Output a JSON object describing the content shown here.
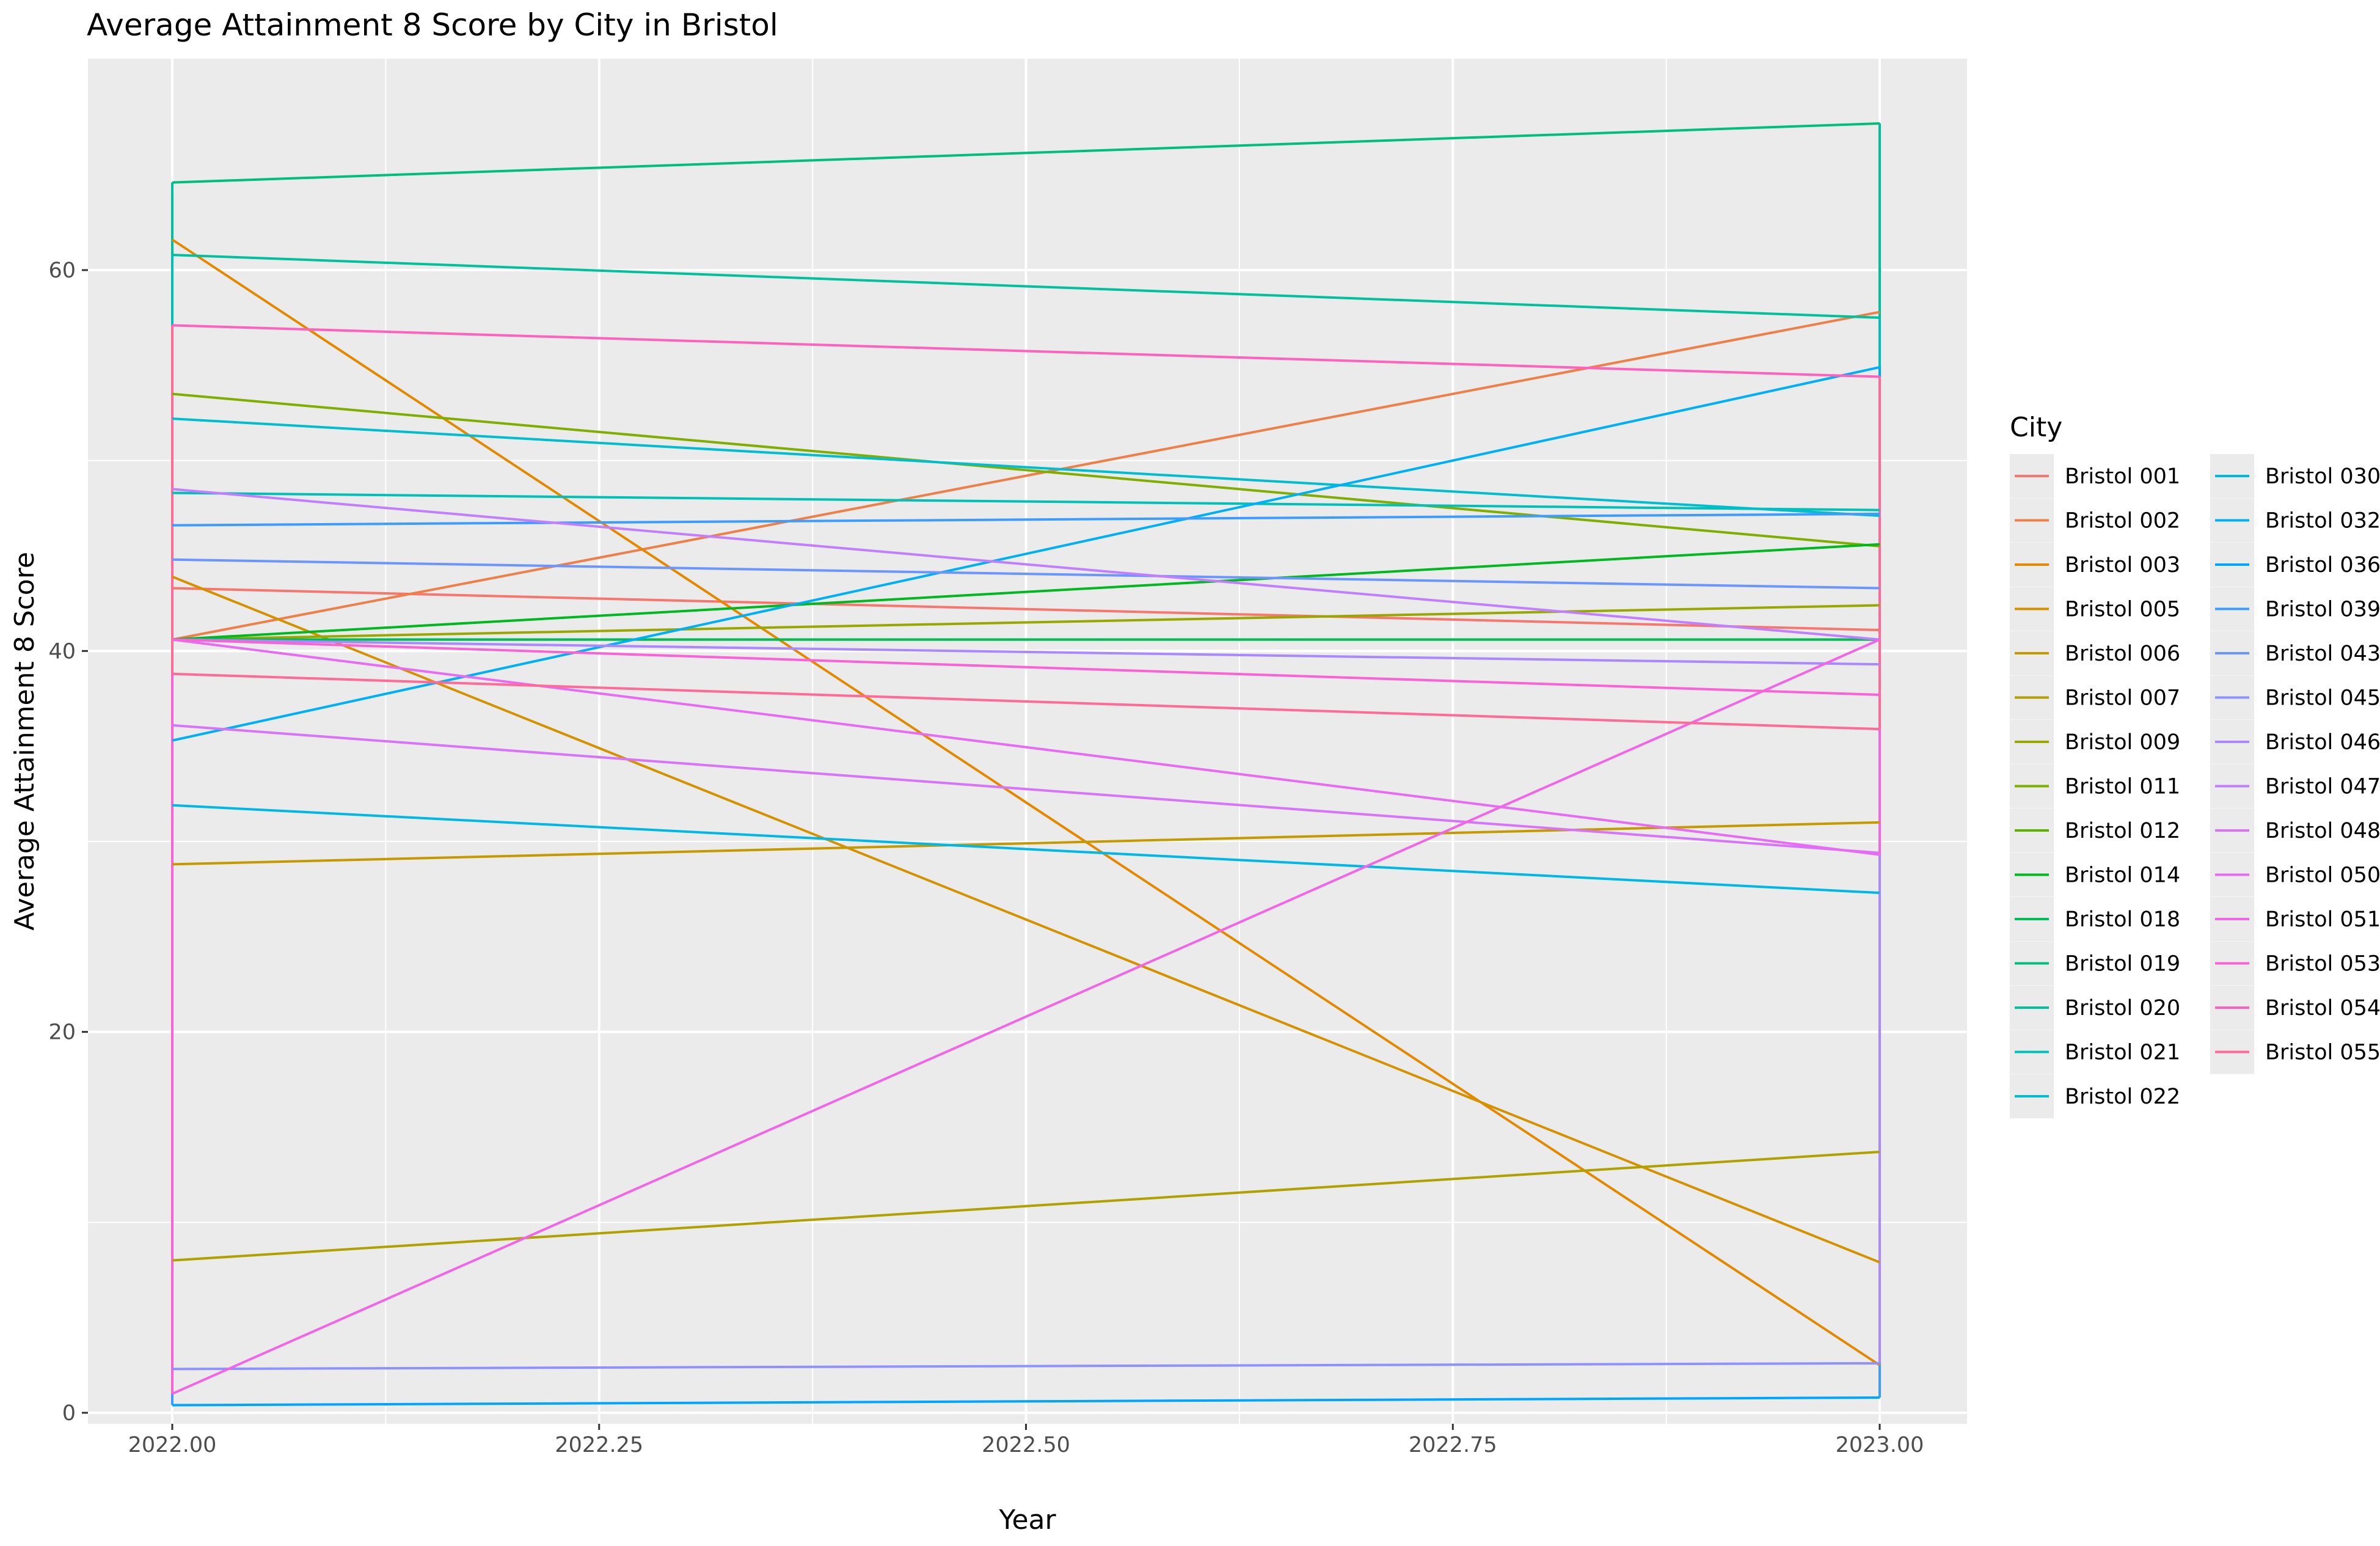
{
  "chart_data": {
    "type": "line",
    "title": "Average Attainment 8 Score by City in Bristol",
    "xlabel": "Year",
    "ylabel": "Average Attainment 8 Score",
    "xlim": [
      1999.95,
      2023.05
    ],
    "ylim": [
      -2.5,
      70.3
    ],
    "xticks": [
      2022.0,
      2022.25,
      2022.5,
      2022.75,
      2023.0
    ],
    "xtick_labels": [
      "2022.00",
      "2022.25",
      "2022.50",
      "2022.75",
      "2023.00"
    ],
    "yticks": [
      0,
      20,
      40,
      60
    ],
    "ytick_labels": [
      "0",
      "20",
      "40",
      "60"
    ],
    "grid": true,
    "legend_title": "City",
    "legend_position": "right",
    "series": [
      {
        "name": "Bristol 001",
        "color": "#F8766D",
        "values": [
          43.3,
          41.1
        ]
      },
      {
        "name": "Bristol 002",
        "color": "#EF7F49",
        "values": [
          40.6,
          57.8
        ]
      },
      {
        "name": "Bristol 003",
        "color": "#E38900",
        "values": [
          61.6,
          2.5
        ]
      },
      {
        "name": "Bristol 005",
        "color": "#D49200",
        "values": [
          43.9,
          7.9
        ]
      },
      {
        "name": "Bristol 006",
        "color": "#C49A00",
        "values": [
          28.8,
          31.0
        ]
      },
      {
        "name": "Bristol 007",
        "color": "#B0A100",
        "values": [
          8.0,
          13.7
        ]
      },
      {
        "name": "Bristol 009",
        "color": "#99A800",
        "values": [
          40.6,
          42.4
        ]
      },
      {
        "name": "Bristol 011",
        "color": "#7FAE00",
        "values": [
          53.5,
          45.5
        ]
      },
      {
        "name": "Bristol 012",
        "color": "#5BB300",
        "values": [
          40.6,
          40.6
        ]
      },
      {
        "name": "Bristol 014",
        "color": "#00B81F",
        "values": [
          40.6,
          45.6
        ]
      },
      {
        "name": "Bristol 018",
        "color": "#00BC59",
        "values": [
          40.6,
          40.6
        ]
      },
      {
        "name": "Bristol 019",
        "color": "#00BF7D",
        "values": [
          64.6,
          67.7
        ]
      },
      {
        "name": "Bristol 020",
        "color": "#00C19C",
        "values": [
          60.8,
          57.5
        ]
      },
      {
        "name": "Bristol 021",
        "color": "#00C0B8",
        "values": [
          48.3,
          47.4
        ]
      },
      {
        "name": "Bristol 022",
        "color": "#00BDD0",
        "values": [
          52.2,
          47.1
        ]
      },
      {
        "name": "Bristol 030",
        "color": "#00B8E5",
        "values": [
          31.9,
          27.3
        ]
      },
      {
        "name": "Bristol 032",
        "color": "#00B0F6",
        "values": [
          35.3,
          54.9
        ]
      },
      {
        "name": "Bristol 036",
        "color": "#00A5FF",
        "values": [
          0.4,
          0.8
        ]
      },
      {
        "name": "Bristol 039",
        "color": "#3D9CFF",
        "values": [
          46.6,
          47.2
        ]
      },
      {
        "name": "Bristol 043",
        "color": "#6B95FF",
        "values": [
          44.8,
          43.3
        ]
      },
      {
        "name": "Bristol 045",
        "color": "#8F91FF",
        "values": [
          2.3,
          2.6
        ]
      },
      {
        "name": "Bristol 046",
        "color": "#AA88FF",
        "values": [
          40.6,
          39.3
        ]
      },
      {
        "name": "Bristol 047",
        "color": "#C17FFF",
        "values": [
          48.5,
          40.6
        ]
      },
      {
        "name": "Bristol 048",
        "color": "#D774FA",
        "values": [
          36.1,
          29.4
        ]
      },
      {
        "name": "Bristol 050",
        "color": "#E76BF3",
        "values": [
          40.6,
          29.3
        ]
      },
      {
        "name": "Bristol 051",
        "color": "#F265E7",
        "values": [
          1.0,
          40.6
        ]
      },
      {
        "name": "Bristol 053",
        "color": "#FA62D6",
        "values": [
          40.6,
          37.7
        ]
      },
      {
        "name": "Bristol 054",
        "color": "#FF62BC",
        "values": [
          57.1,
          54.4
        ]
      },
      {
        "name": "Bristol 055",
        "color": "#FF6A98",
        "values": [
          38.8,
          35.9
        ]
      }
    ],
    "x": [
      2022.0,
      2023.0
    ]
  }
}
